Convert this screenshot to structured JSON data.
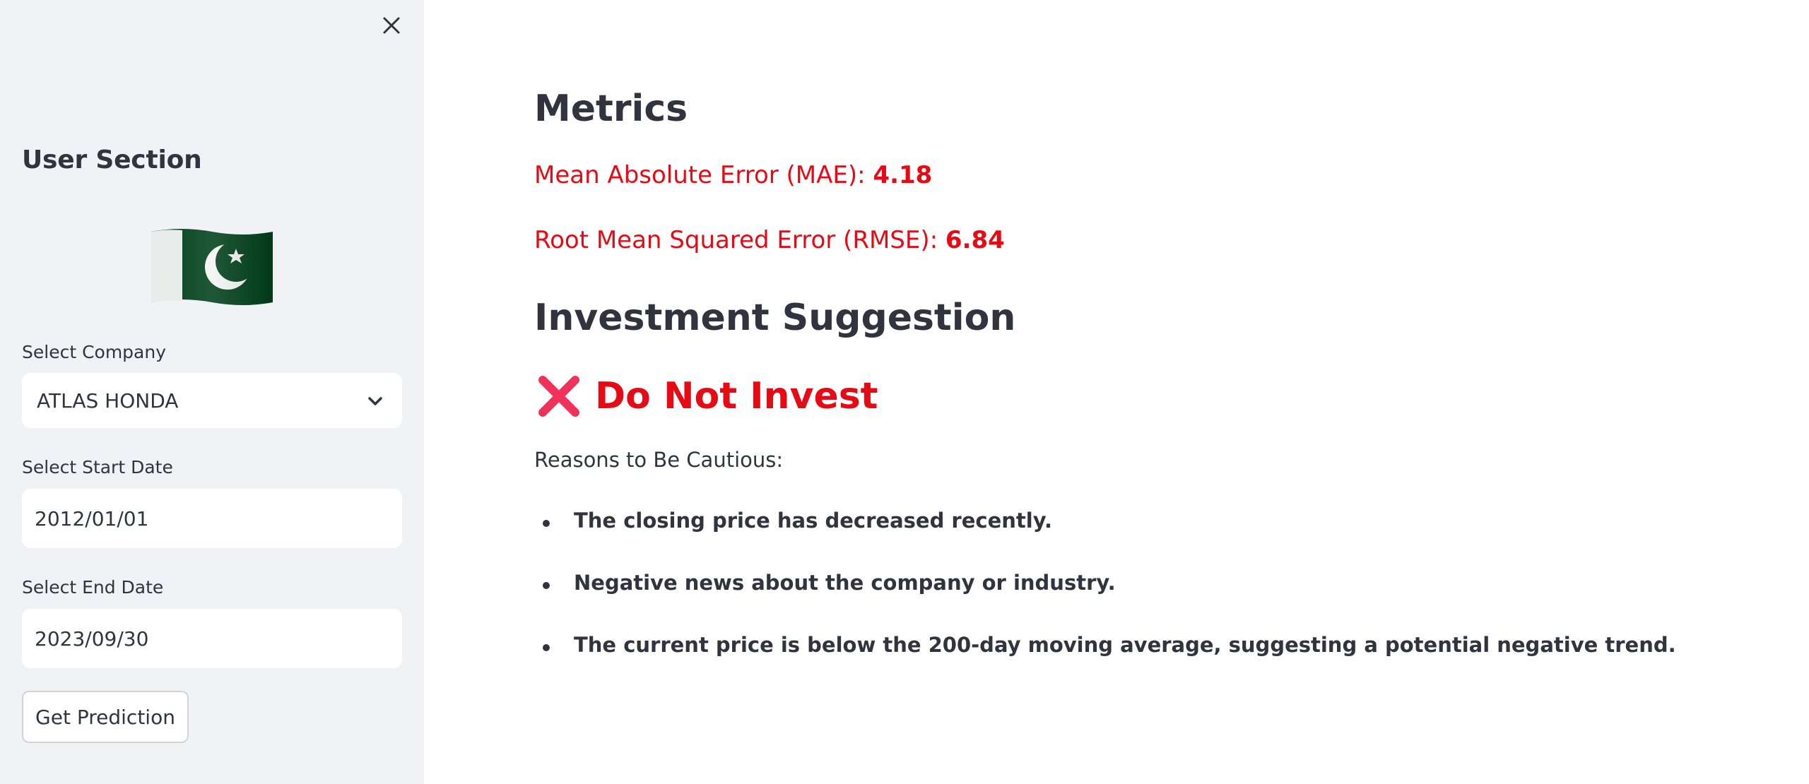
{
  "sidebar": {
    "title": "User Section",
    "flag_icon": "pakistan-flag",
    "company": {
      "label": "Select Company",
      "value": "ATLAS HONDA"
    },
    "start_date": {
      "label": "Select Start Date",
      "value": "2012/01/01"
    },
    "end_date": {
      "label": "Select End Date",
      "value": "2023/09/30"
    },
    "predict_button": "Get Prediction"
  },
  "main": {
    "metrics_title": "Metrics",
    "mae": {
      "label": "Mean Absolute Error (MAE): ",
      "value": "4.18"
    },
    "rmse": {
      "label": "Root Mean Squared Error (RMSE): ",
      "value": "6.84"
    },
    "suggestion_title": "Investment Suggestion",
    "verdict": "Do Not Invest",
    "reasons_label": "Reasons to Be Cautious:",
    "reasons": [
      "The closing price has decreased recently.",
      "Negative news about the company or industry.",
      "The current price is below the 200-day moving average, suggesting a potential negative trend."
    ]
  },
  "colors": {
    "sidebar_bg": "#f0f2f6",
    "text": "#31333f",
    "alert_red": "#e60a14",
    "x_mark": "#f0325a"
  }
}
